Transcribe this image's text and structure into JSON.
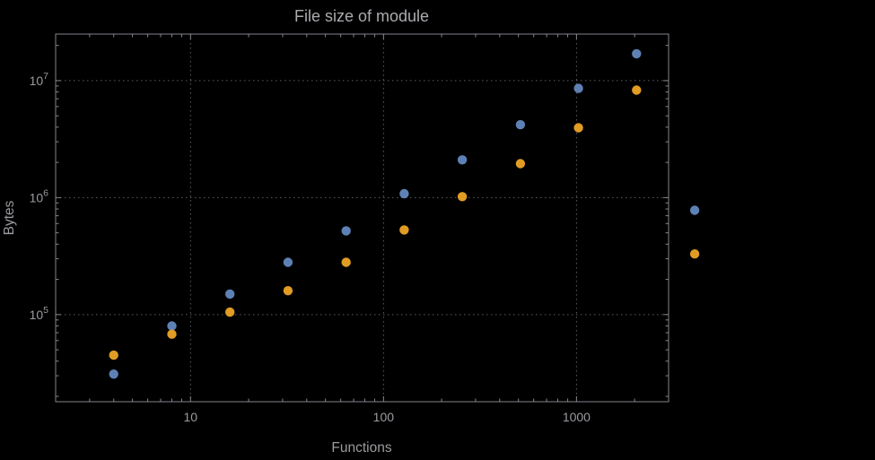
{
  "chart_data": {
    "type": "scatter",
    "title": "File size of module",
    "xlabel": "Functions",
    "ylabel": "Bytes",
    "x_scale": "log",
    "y_scale": "log",
    "xlim": [
      2,
      3000
    ],
    "ylim": [
      18000,
      25000000
    ],
    "grid": "dotted decade gridlines",
    "legend": "none",
    "background_color": "#000000",
    "frame_color": "#85858c",
    "grid_color": "#5d5d64",
    "label_color": "#9b9ba1",
    "x_ticks": [
      {
        "value": 10,
        "label": "10"
      },
      {
        "value": 100,
        "label": "100"
      },
      {
        "value": 1000,
        "label": "1000"
      }
    ],
    "y_ticks": [
      {
        "value": 100000,
        "mantissa": "10",
        "exponent": "5"
      },
      {
        "value": 1000000,
        "mantissa": "10",
        "exponent": "6"
      },
      {
        "value": 10000000,
        "mantissa": "10",
        "exponent": "7"
      }
    ],
    "x": [
      4,
      8,
      16,
      32,
      64,
      128,
      256,
      512,
      1024,
      2048,
      4096
    ],
    "series": [
      {
        "name": "series-1-blue",
        "color": "#5e81b5",
        "y": [
          31000,
          80000,
          150000,
          280000,
          520000,
          1080000,
          2100000,
          4200000,
          8600000,
          17000000,
          780000
        ]
      },
      {
        "name": "series-2-orange",
        "color": "#e19c24",
        "y": [
          45000,
          68000,
          105000,
          160000,
          280000,
          530000,
          1020000,
          1950000,
          3950000,
          8300000,
          330000
        ]
      }
    ]
  }
}
